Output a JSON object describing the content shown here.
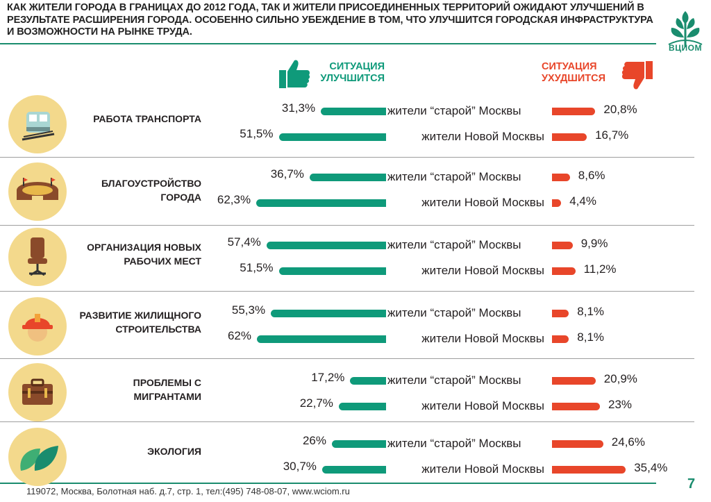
{
  "title": "Как жители города в границах до 2012 года, так и жители присоединенных территорий ожидают улучшений в результате расширения города. Особенно сильно убеждение в том, что улучшится городская инфраструктура и возможности на рынке труда.",
  "logo_text": "ВЦИОМ",
  "legend": {
    "positive": "Ситуация улучшится",
    "negative": "Ситуация ухудшится"
  },
  "footer": "119072, Москва, Болотная наб. д.7, стр. 1, тел:(495) 748-08-07, www.wciom.ru",
  "page_number": "7",
  "colors": {
    "positive": "#0f9a7a",
    "negative": "#e8462a",
    "icon_bg": "#f3d98c",
    "accent": "#1a8c6e"
  },
  "chart_data": {
    "type": "bar",
    "series": [
      {
        "name": "Ситуация улучшится",
        "color": "#0f9a7a"
      },
      {
        "name": "Ситуация ухудшится",
        "color": "#e8462a"
      }
    ],
    "categories": [
      {
        "label": "Работа транспорта",
        "icon": "train-icon",
        "rows": [
          {
            "group": "жители “старой” Москвы",
            "positive": 31.3,
            "positive_label": "31,3%",
            "negative": 20.8,
            "negative_label": "20,8%"
          },
          {
            "group": "жители Новой Москвы",
            "positive": 51.5,
            "positive_label": "51,5%",
            "negative": 16.7,
            "negative_label": "16,7%"
          }
        ]
      },
      {
        "label": "Благоустройство города",
        "icon": "stadium-icon",
        "rows": [
          {
            "group": "жители “старой” Москвы",
            "positive": 36.7,
            "positive_label": "36,7%",
            "negative": 8.6,
            "negative_label": "8,6%"
          },
          {
            "group": "жители Новой Москвы",
            "positive": 62.3,
            "positive_label": "62,3%",
            "negative": 4.4,
            "negative_label": "4,4%"
          }
        ]
      },
      {
        "label": "Организация новых рабочих мест",
        "icon": "office-chair-icon",
        "rows": [
          {
            "group": "жители “старой” Москвы",
            "positive": 57.4,
            "positive_label": "57,4%",
            "negative": 9.9,
            "negative_label": "9,9%"
          },
          {
            "group": "жители Новой Москвы",
            "positive": 51.5,
            "positive_label": "51,5%",
            "negative": 11.2,
            "negative_label": "11,2%"
          }
        ]
      },
      {
        "label": "Развитие жилищного строительства",
        "icon": "builder-helmet-icon",
        "rows": [
          {
            "group": "жители “старой” Москвы",
            "positive": 55.3,
            "positive_label": "55,3%",
            "negative": 8.1,
            "negative_label": "8,1%"
          },
          {
            "group": "жители Новой Москвы",
            "positive": 62,
            "positive_label": "62%",
            "negative": 8.1,
            "negative_label": "8,1%"
          }
        ]
      },
      {
        "label": "Проблемы с мигрантами",
        "icon": "suitcase-icon",
        "rows": [
          {
            "group": "жители “старой” Москвы",
            "positive": 17.2,
            "positive_label": "17,2%",
            "negative": 20.9,
            "negative_label": "20,9%"
          },
          {
            "group": "жители Новой Москвы",
            "positive": 22.7,
            "positive_label": "22,7%",
            "negative": 23,
            "negative_label": "23%"
          }
        ]
      },
      {
        "label": "Экология",
        "icon": "leaves-icon",
        "rows": [
          {
            "group": "жители “старой” Москвы",
            "positive": 26,
            "positive_label": "26%",
            "negative": 24.6,
            "negative_label": "24,6%"
          },
          {
            "group": "жители Новой Москвы",
            "positive": 30.7,
            "positive_label": "30,7%",
            "negative": 35.4,
            "negative_label": "35,4%"
          }
        ]
      }
    ]
  }
}
